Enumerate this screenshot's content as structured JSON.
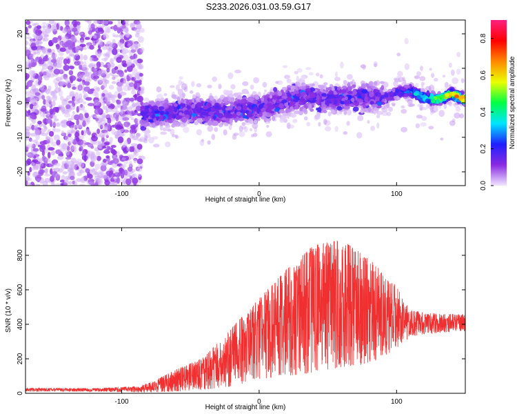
{
  "title": "S233.2026.031.03.59.G17",
  "chart_data": [
    {
      "type": "heatmap",
      "xlabel": "Height of straight line (km)",
      "ylabel": "Frequency (Hz)",
      "xlim": [
        -170,
        150
      ],
      "ylim": [
        -24,
        24
      ],
      "x_ticks": [
        -100,
        0,
        100
      ],
      "y_ticks": [
        -20,
        -10,
        0,
        10,
        20
      ],
      "colorbar": {
        "label": "Normalized spectral amplitude",
        "range": [
          0.0,
          0.9
        ],
        "ticks": [
          "0.0",
          "0.2",
          "0.4",
          "0.6",
          "0.8"
        ],
        "tick_values": [
          0.0,
          0.2,
          0.4,
          0.6,
          0.8
        ],
        "colors": [
          "#f0e6ff",
          "#8a2be2",
          "#1e1eff",
          "#00e5ff",
          "#00ff44",
          "#eaff00",
          "#ff8800",
          "#ff0000",
          "#ff2080"
        ]
      },
      "ridge": {
        "x": [
          -85,
          -70,
          -50,
          -30,
          -10,
          0,
          10,
          20,
          30,
          50,
          70,
          90,
          100,
          110,
          120,
          130,
          140,
          150
        ],
        "y": [
          -3.5,
          -3.0,
          -2.0,
          -2.5,
          -2.0,
          -1.5,
          -0.5,
          1.0,
          1.5,
          1.0,
          2.0,
          1.5,
          3.0,
          3.5,
          1.5,
          1.0,
          2.5,
          1.0
        ]
      }
    },
    {
      "type": "line",
      "xlabel": "Height of straight line (km)",
      "ylabel": "SNR (10 * v/v)",
      "xlim": [
        -170,
        150
      ],
      "ylim": [
        0,
        960
      ],
      "x_ticks": [
        -100,
        0,
        100
      ],
      "y_ticks": [
        0,
        200,
        400,
        600,
        800
      ],
      "color": "#f03030",
      "envelope": {
        "x": [
          -170,
          -120,
          -90,
          -80,
          -60,
          -40,
          -20,
          0,
          20,
          40,
          60,
          80,
          100,
          110,
          130,
          150
        ],
        "lower": [
          10,
          10,
          5,
          5,
          10,
          20,
          40,
          80,
          100,
          120,
          150,
          170,
          250,
          330,
          350,
          360
        ],
        "upper": [
          30,
          30,
          40,
          60,
          140,
          210,
          380,
          550,
          720,
          860,
          890,
          780,
          620,
          480,
          460,
          460
        ],
        "mean": [
          20,
          20,
          20,
          30,
          70,
          110,
          200,
          290,
          380,
          440,
          480,
          450,
          420,
          410,
          420,
          420
        ]
      }
    }
  ]
}
